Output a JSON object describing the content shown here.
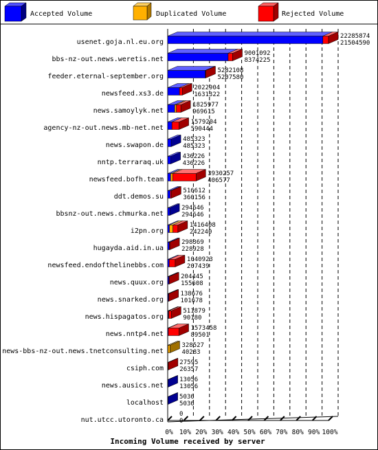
{
  "chart_data": {
    "type": "bar",
    "orientation": "horizontal",
    "stacked": true,
    "title": "Incoming Volume received by server",
    "x_axis": {
      "range_percent": [
        0,
        100
      ],
      "tick_labels": [
        "0%",
        "10%",
        "20%",
        "30%",
        "40%",
        "50%",
        "60%",
        "70%",
        "80%",
        "90%",
        "100%"
      ]
    },
    "grid": "vertical-dashed",
    "legend_placement": "top",
    "legend": [
      {
        "name": "Accepted Volume",
        "color": "#0000ff"
      },
      {
        "name": "Duplicated Volume",
        "color": "#ffb000"
      },
      {
        "name": "Rejected Volume",
        "color": "#ff0000"
      }
    ],
    "total_reference": 22285874,
    "categories": [
      "usenet.goja.nl.eu.org",
      "bbs-nz-out.news.weretis.net",
      "feeder.eternal-september.org",
      "newsfeed.xs3.de",
      "news.samoylyk.net",
      "agency-nz-out.news.mb-net.net",
      "news.swapon.de",
      "nntp.terraraq.uk",
      "newsfeed.bofh.team",
      "ddt.demos.su",
      "bbsnz-out.news.chmurka.net",
      "i2pn.org",
      "hugayda.aid.in.ua",
      "newsfeed.endofthelinebbs.com",
      "news.quux.org",
      "news.snarked.org",
      "news.hispagatos.org",
      "news.nntp4.net",
      "news-bbs-nz-out.news.tnetconsulting.net",
      "csiph.com",
      "news.ausics.net",
      "localhost",
      "nut.utcc.utoronto.ca"
    ],
    "total_labels": [
      "22285874",
      "9001092",
      "5282108",
      "2022904",
      "1825977",
      "1579204",
      "485323",
      "436226",
      "3930257",
      "516612",
      "294646",
      "1416408",
      "298369",
      "1040923",
      "204445",
      "138676",
      "511879",
      "1573458",
      "328527",
      "27595",
      "13056",
      "5036",
      "0"
    ],
    "accepted_labels": [
      "21504590",
      "8374225",
      "5207580",
      "1631322",
      "969615",
      "590444",
      "485323",
      "436226",
      "406577",
      "360156",
      "294646",
      "242240",
      "228928",
      "207439",
      "155608",
      "101678",
      "90180",
      "89501",
      "40283",
      "26357",
      "13056",
      "5036",
      "0"
    ],
    "series": [
      {
        "name": "Accepted Volume",
        "values": [
          21504590,
          8374225,
          5207580,
          1631322,
          969615,
          590444,
          485323,
          436226,
          406577,
          360156,
          294646,
          242240,
          228928,
          207439,
          155608,
          101678,
          90180,
          89501,
          40283,
          26357,
          13056,
          5036,
          0
        ]
      },
      {
        "name": "Duplicated Volume",
        "values": [
          0,
          0,
          0,
          0,
          230000,
          0,
          0,
          0,
          280000,
          0,
          0,
          480000,
          0,
          0,
          0,
          0,
          60000,
          0,
          288244,
          0,
          0,
          0,
          0
        ]
      },
      {
        "name": "Rejected Volume",
        "values": [
          781284,
          626867,
          74528,
          391582,
          626362,
          988760,
          0,
          0,
          3243680,
          156456,
          0,
          694168,
          69441,
          833484,
          48837,
          36998,
          361699,
          1483957,
          0,
          1238,
          0,
          0,
          0
        ]
      }
    ]
  }
}
